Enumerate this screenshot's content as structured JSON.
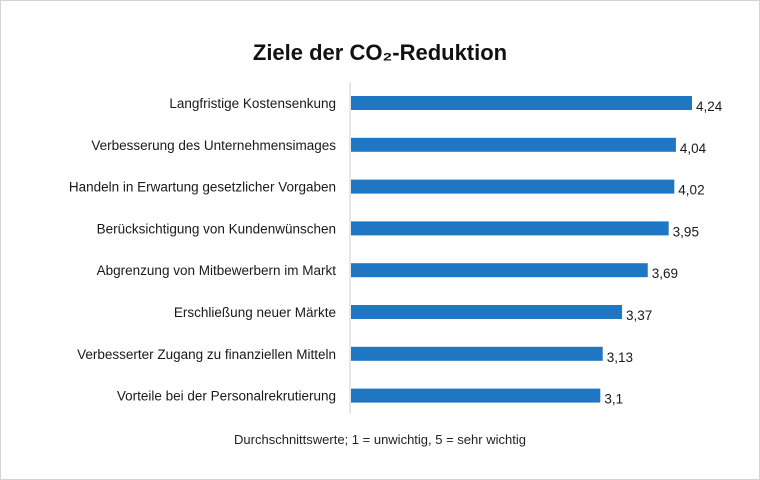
{
  "chart_data": {
    "type": "bar",
    "orientation": "horizontal",
    "title": "Ziele der CO₂-Reduktion",
    "footnote": "Durchschnittswerte; 1 = unwichtig, 5 = sehr wichtig",
    "categories": [
      "Langfristige Kostensenkung",
      "Verbesserung des Unternehmensimages",
      "Handeln in Erwartung gesetzlicher Vorgaben",
      "Berücksichtigung von Kundenwünschen",
      "Abgrenzung von Mitbewerbern im Markt",
      "Erschließung neuer Märkte",
      "Verbesserter Zugang zu finanziellen Mitteln",
      "Vorteile bei der Personalrekrutierung"
    ],
    "values": [
      4.24,
      4.04,
      4.02,
      3.95,
      3.69,
      3.37,
      3.13,
      3.1
    ],
    "value_labels": [
      "4,24",
      "4,04",
      "4,02",
      "3,95",
      "3,69",
      "3,37",
      "3,13",
      "3,1"
    ],
    "xlim": [
      0,
      4.24
    ],
    "grid": false,
    "bar_color": "#1f77c4"
  }
}
